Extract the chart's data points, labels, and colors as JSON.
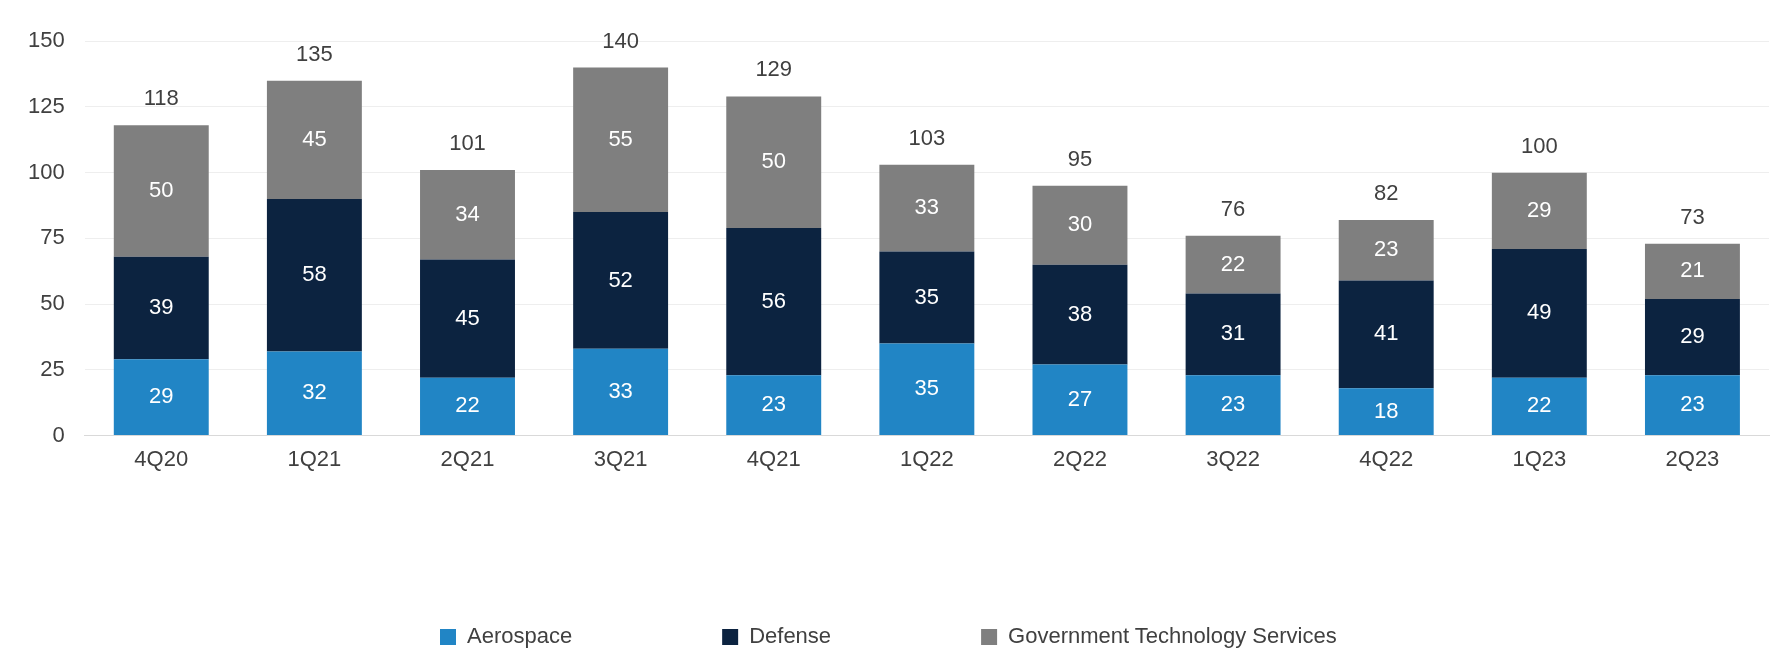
{
  "chart_data": {
    "type": "bar",
    "stacked": true,
    "categories": [
      "4Q20",
      "1Q21",
      "2Q21",
      "3Q21",
      "4Q21",
      "1Q22",
      "2Q22",
      "3Q22",
      "4Q22",
      "1Q23",
      "2Q23"
    ],
    "series": [
      {
        "name": "Aerospace",
        "color": "#2185c5",
        "values": [
          29,
          32,
          22,
          33,
          23,
          35,
          27,
          23,
          18,
          22,
          23
        ]
      },
      {
        "name": "Defense",
        "color": "#0c2340",
        "values": [
          39,
          58,
          45,
          52,
          56,
          35,
          38,
          31,
          41,
          49,
          29
        ]
      },
      {
        "name": "Government Technology Services",
        "color": "#7f7f7f",
        "values": [
          50,
          45,
          34,
          55,
          50,
          33,
          30,
          22,
          23,
          29,
          21
        ]
      }
    ],
    "ylim": [
      0,
      150
    ],
    "yticks": [
      0,
      25,
      50,
      75,
      100,
      125,
      150
    ],
    "grid": "y",
    "legend": "bottom",
    "data_labels": true,
    "totals": [
      "118",
      "135",
      "101",
      "140",
      "129",
      "103",
      "95",
      "76",
      "82",
      "100",
      "73"
    ]
  }
}
